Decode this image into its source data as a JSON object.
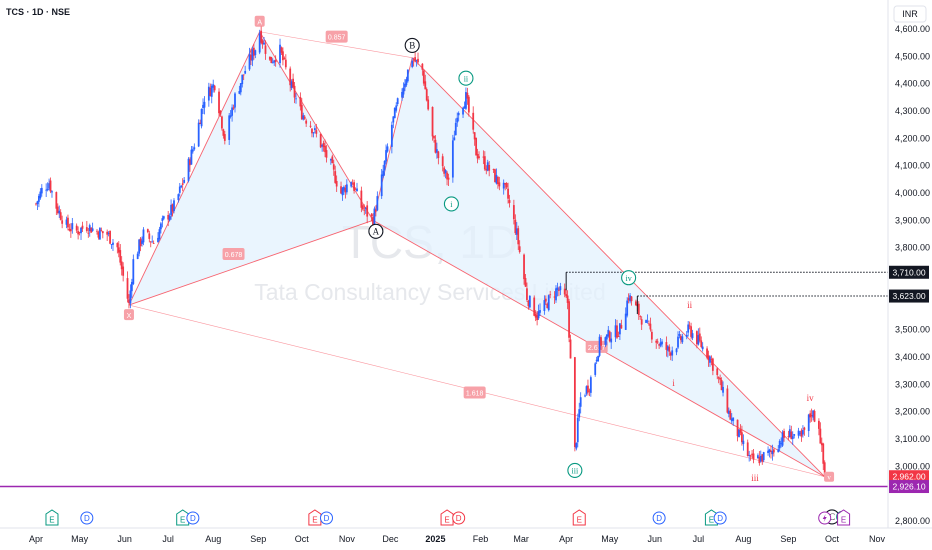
{
  "header": {
    "title": "TCS · 1D · NSE",
    "currency": "INR"
  },
  "watermark": {
    "ticker": "TCS, 1D",
    "company": "Tata Consultancy Services Limited"
  },
  "colors": {
    "up": "#2962ff",
    "down": "#f23645",
    "pattern": "#f7525f",
    "fill": "#e3f2fd",
    "cursor": "#9c27b0",
    "wave": "#089981"
  },
  "chart_data": {
    "type": "candlestick",
    "y_axis": {
      "ticks": [
        "4,600.00",
        "4,500.00",
        "4,400.00",
        "4,300.00",
        "4,200.00",
        "4,100.00",
        "4,000.00",
        "3,900.00",
        "3,800.00",
        "3,500.00",
        "3,400.00",
        "3,300.00",
        "3,200.00",
        "3,100.00",
        "3,000.00",
        "2,800.00"
      ],
      "range": [
        2780,
        4640
      ]
    },
    "x_axis": {
      "labels": [
        "Apr",
        "May",
        "Jun",
        "Jul",
        "Aug",
        "Sep",
        "Oct",
        "Nov",
        "Dec",
        "2025",
        "Feb",
        "Mar",
        "Apr",
        "May",
        "Jun",
        "Jul",
        "Aug",
        "Sep",
        "Oct",
        "Nov"
      ]
    },
    "price_labels": [
      {
        "value": 3710,
        "text": "3,710.00",
        "style": "dark"
      },
      {
        "value": 3623,
        "text": "3,623.00",
        "style": "dark"
      },
      {
        "value": 2962,
        "text": "2,962.00",
        "style": "red"
      },
      {
        "value": 2926.1,
        "text": "2,926.10",
        "style": "purple"
      }
    ],
    "pattern": {
      "points": [
        {
          "name": "X",
          "label": "X",
          "date": "2024-06-04",
          "price": 3590
        },
        {
          "name": "A",
          "label": "A",
          "date": "2024-09-02",
          "price": 4590
        },
        {
          "name": "B",
          "label": "B",
          "date": "2024-12-16",
          "price": 4495
        },
        {
          "name": "C",
          "label": "C",
          "date": "2025-09-26",
          "price": 2962
        }
      ],
      "ratios": [
        {
          "text": "0.857",
          "date": "2024-10-25",
          "price": 4572
        },
        {
          "text": "0.678",
          "date": "2024-08-15",
          "price": 3777
        },
        {
          "text": "1.618",
          "date": "2025-01-28",
          "price": 3270
        },
        {
          "text": "2.617",
          "date": "2025-04-22",
          "price": 3437
        }
      ]
    },
    "elliott_waves": [
      {
        "label": "A",
        "date": "2024-11-21",
        "price": 3860,
        "style": "circle-black"
      },
      {
        "label": "B",
        "date": "2024-12-16",
        "price": 4540,
        "style": "circle-black"
      },
      {
        "label": "i",
        "date": "2025-01-12",
        "price": 3960,
        "style": "circle-green"
      },
      {
        "label": "ii",
        "date": "2025-01-22",
        "price": 4420,
        "style": "circle-green"
      },
      {
        "label": "iii",
        "date": "2025-04-07",
        "price": 2985,
        "style": "circle-green"
      },
      {
        "label": "iv",
        "date": "2025-05-14",
        "price": 3690,
        "style": "circle-green"
      },
      {
        "label": "C",
        "date": "2025-10-01",
        "price": 2815,
        "style": "circle-black"
      },
      {
        "label": "v",
        "date": "2025-10-08",
        "price": 2815,
        "style": "circle-green-small"
      },
      {
        "label": "i",
        "date": "2025-06-14",
        "price": 3305,
        "style": "text-red"
      },
      {
        "label": "ii",
        "date": "2025-06-25",
        "price": 3590,
        "style": "text-red"
      },
      {
        "label": "iii",
        "date": "2025-08-09",
        "price": 2958,
        "style": "text-red"
      },
      {
        "label": "iv",
        "date": "2025-09-16",
        "price": 3250,
        "style": "text-red"
      },
      {
        "label": "v",
        "date": "2025-09-29",
        "price": 2962,
        "style": "box-red"
      }
    ],
    "levels": [
      {
        "price": 3710,
        "from": "2025-04-01"
      },
      {
        "price": 3623,
        "from": "2025-05-20"
      }
    ],
    "events": [
      {
        "type": "E",
        "date": "2024-04-12",
        "color": "#089981"
      },
      {
        "type": "D",
        "date": "2024-05-06",
        "color": "#2962ff"
      },
      {
        "type": "E",
        "date": "2024-07-11",
        "color": "#089981"
      },
      {
        "type": "D",
        "date": "2024-07-18",
        "color": "#2962ff"
      },
      {
        "type": "E",
        "date": "2024-10-10",
        "color": "#f23645"
      },
      {
        "type": "D",
        "date": "2024-10-18",
        "color": "#2962ff"
      },
      {
        "type": "E",
        "date": "2025-01-09",
        "color": "#f23645"
      },
      {
        "type": "D",
        "date": "2025-01-17",
        "color": "#f23645"
      },
      {
        "type": "E",
        "date": "2025-04-10",
        "color": "#f23645"
      },
      {
        "type": "D",
        "date": "2025-06-04",
        "color": "#2962ff"
      },
      {
        "type": "E",
        "date": "2025-07-10",
        "color": "#089981"
      },
      {
        "type": "D",
        "date": "2025-07-16",
        "color": "#2962ff"
      },
      {
        "type": "S",
        "date": "2025-09-26",
        "color": "#9c27b0"
      },
      {
        "type": "E",
        "date": "2025-10-09",
        "color": "#9c27b0"
      }
    ],
    "cursor_price": 2926.1,
    "price_path": [
      [
        "2024-04-01",
        3960
      ],
      [
        "2024-04-05",
        4010
      ],
      [
        "2024-04-10",
        4040
      ],
      [
        "2024-04-15",
        3950
      ],
      [
        "2024-04-22",
        3880
      ],
      [
        "2024-04-29",
        3860
      ],
      [
        "2024-05-06",
        3880
      ],
      [
        "2024-05-13",
        3860
      ],
      [
        "2024-05-20",
        3850
      ],
      [
        "2024-05-27",
        3800
      ],
      [
        "2024-06-04",
        3590
      ],
      [
        "2024-06-07",
        3750
      ],
      [
        "2024-06-14",
        3850
      ],
      [
        "2024-06-21",
        3820
      ],
      [
        "2024-06-28",
        3900
      ],
      [
        "2024-07-05",
        3950
      ],
      [
        "2024-07-12",
        4050
      ],
      [
        "2024-07-19",
        4180
      ],
      [
        "2024-07-26",
        4350
      ],
      [
        "2024-08-02",
        4400
      ],
      [
        "2024-08-09",
        4200
      ],
      [
        "2024-08-16",
        4350
      ],
      [
        "2024-08-23",
        4450
      ],
      [
        "2024-08-30",
        4530
      ],
      [
        "2024-09-02",
        4590
      ],
      [
        "2024-09-09",
        4480
      ],
      [
        "2024-09-16",
        4520
      ],
      [
        "2024-09-23",
        4400
      ],
      [
        "2024-09-30",
        4300
      ],
      [
        "2024-10-07",
        4250
      ],
      [
        "2024-10-14",
        4180
      ],
      [
        "2024-10-21",
        4100
      ],
      [
        "2024-10-28",
        4000
      ],
      [
        "2024-11-04",
        4050
      ],
      [
        "2024-11-11",
        3950
      ],
      [
        "2024-11-19",
        3900
      ],
      [
        "2024-11-25",
        4050
      ],
      [
        "2024-12-02",
        4250
      ],
      [
        "2024-12-09",
        4380
      ],
      [
        "2024-12-16",
        4495
      ],
      [
        "2024-12-23",
        4450
      ],
      [
        "2024-12-30",
        4200
      ],
      [
        "2025-01-06",
        4080
      ],
      [
        "2025-01-10",
        4050
      ],
      [
        "2025-01-16",
        4300
      ],
      [
        "2025-01-22",
        4350
      ],
      [
        "2025-01-29",
        4150
      ],
      [
        "2025-02-05",
        4100
      ],
      [
        "2025-02-12",
        4050
      ],
      [
        "2025-02-19",
        4000
      ],
      [
        "2025-02-26",
        3850
      ],
      [
        "2025-03-05",
        3620
      ],
      [
        "2025-03-12",
        3550
      ],
      [
        "2025-03-19",
        3600
      ],
      [
        "2025-03-26",
        3650
      ],
      [
        "2025-04-02",
        3600
      ],
      [
        "2025-04-07",
        3056
      ],
      [
        "2025-04-11",
        3250
      ],
      [
        "2025-04-17",
        3300
      ],
      [
        "2025-04-24",
        3450
      ],
      [
        "2025-05-01",
        3480
      ],
      [
        "2025-05-08",
        3500
      ],
      [
        "2025-05-14",
        3623
      ],
      [
        "2025-05-21",
        3560
      ],
      [
        "2025-05-28",
        3500
      ],
      [
        "2025-06-04",
        3450
      ],
      [
        "2025-06-11",
        3420
      ],
      [
        "2025-06-18",
        3460
      ],
      [
        "2025-06-25",
        3500
      ],
      [
        "2025-07-02",
        3450
      ],
      [
        "2025-07-09",
        3400
      ],
      [
        "2025-07-16",
        3300
      ],
      [
        "2025-07-23",
        3180
      ],
      [
        "2025-07-30",
        3100
      ],
      [
        "2025-08-06",
        3020
      ],
      [
        "2025-08-13",
        3030
      ],
      [
        "2025-08-20",
        3050
      ],
      [
        "2025-08-27",
        3100
      ],
      [
        "2025-09-03",
        3120
      ],
      [
        "2025-09-10",
        3100
      ],
      [
        "2025-09-17",
        3200
      ],
      [
        "2025-09-22",
        3150
      ],
      [
        "2025-09-26",
        2962
      ]
    ]
  }
}
